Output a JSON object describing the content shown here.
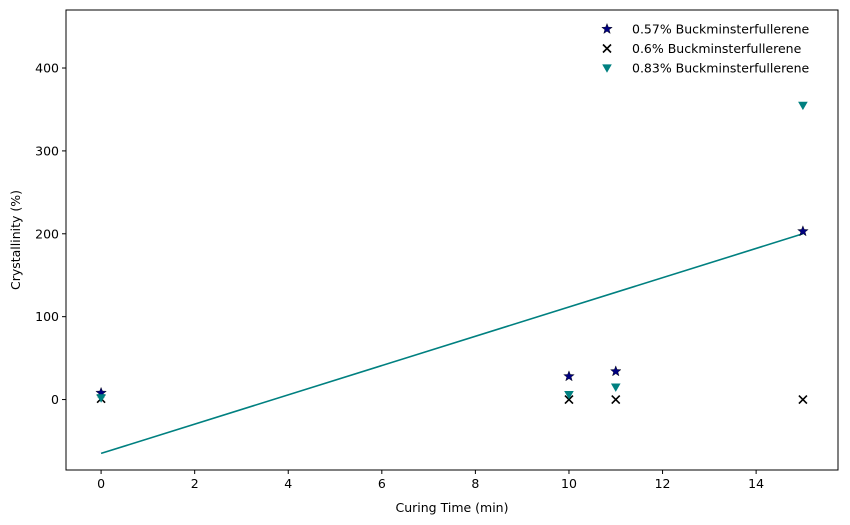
{
  "chart_data": {
    "type": "scatter",
    "xlabel": "Curing Time (min)",
    "ylabel": "Crystallinity (%)",
    "xlim": [
      -0.75,
      15.75
    ],
    "ylim": [
      -85,
      470
    ],
    "xticks": [
      0,
      2,
      4,
      6,
      8,
      10,
      12,
      14
    ],
    "yticks": [
      0,
      100,
      200,
      300,
      400
    ],
    "grid": false,
    "legend_position": "top-right",
    "series": [
      {
        "name": "0.57% Buckminsterfullerene",
        "marker": "star",
        "color": "#000080",
        "x": [
          0,
          10,
          11,
          15
        ],
        "y": [
          8,
          28,
          34,
          203
        ]
      },
      {
        "name": "0.6% Buckminsterfullerene",
        "marker": "x",
        "color": "#000000",
        "x": [
          0,
          10,
          11,
          15
        ],
        "y": [
          1,
          0,
          0,
          0
        ]
      },
      {
        "name": "0.83% Buckminsterfullerene",
        "marker": "triangle-down",
        "color": "#008080",
        "x": [
          0,
          10,
          11,
          15
        ],
        "y": [
          2,
          6,
          15,
          355
        ]
      }
    ],
    "lines": [
      {
        "x": [
          0,
          15
        ],
        "y": [
          -65,
          200
        ],
        "color": "#008080"
      }
    ]
  }
}
